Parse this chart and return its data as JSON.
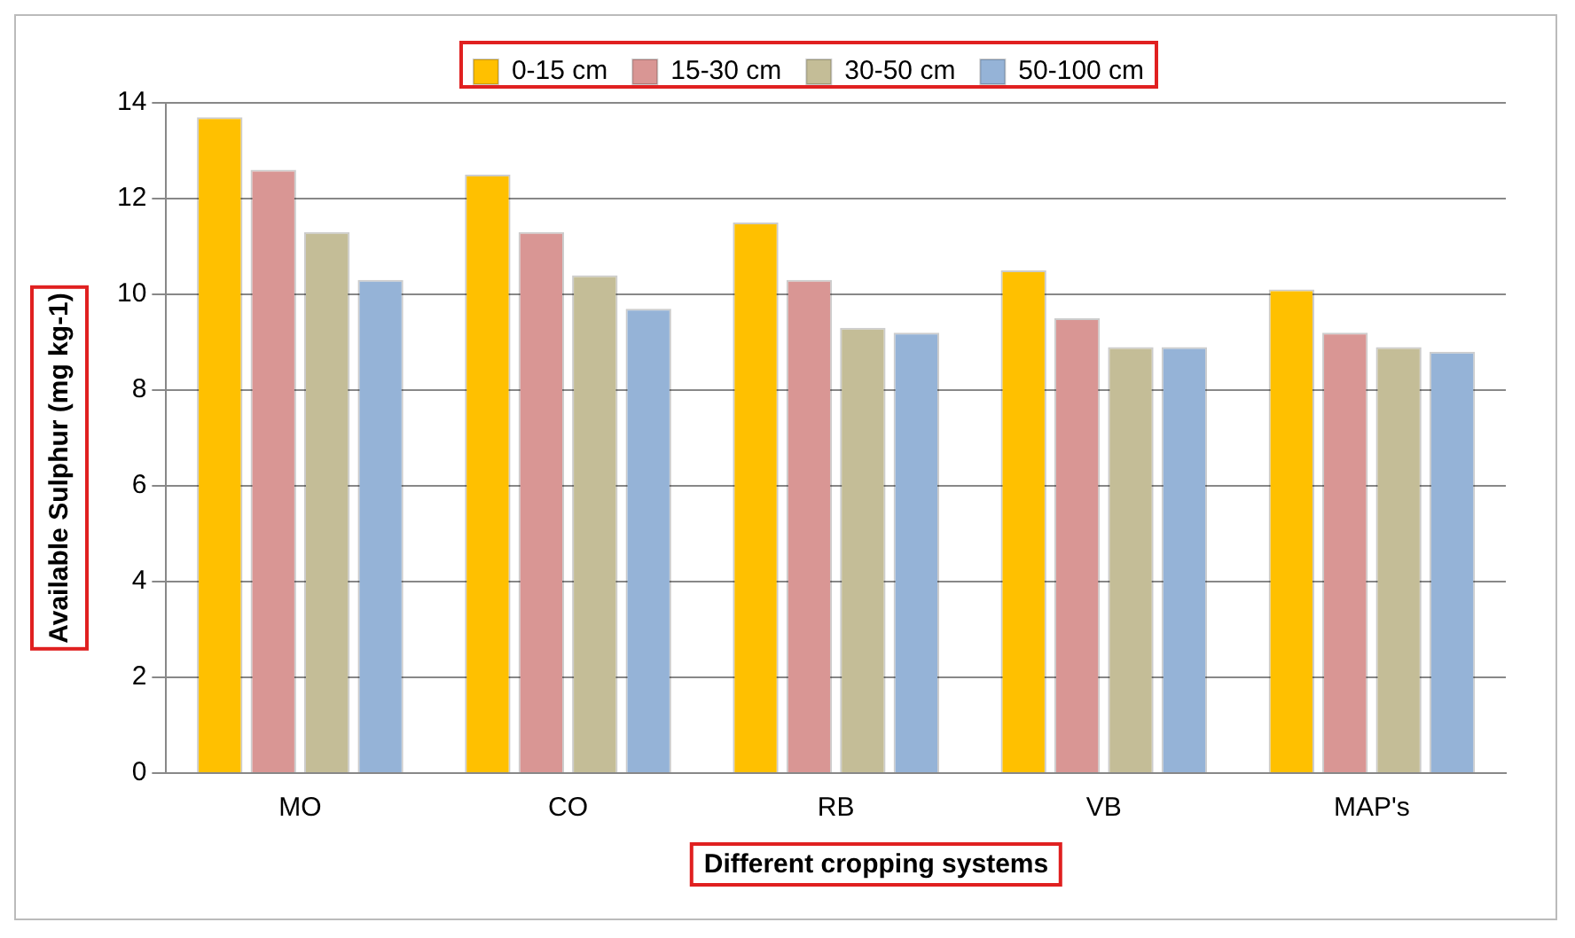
{
  "chart_data": {
    "type": "bar",
    "xlabel": "Different cropping systems",
    "ylabel": "Available Sulphur (mg kg-1)",
    "categories": [
      "MO",
      "CO",
      "RB",
      "VB",
      "MAP's"
    ],
    "series": [
      {
        "name": "0-15 cm",
        "color": "#ffc000",
        "values": [
          13.7,
          12.5,
          11.5,
          10.5,
          10.1
        ]
      },
      {
        "name": "15-30 cm",
        "color": "#d99694",
        "values": [
          12.6,
          11.3,
          10.3,
          9.5,
          9.2
        ]
      },
      {
        "name": "30-50 cm",
        "color": "#c4bd97",
        "values": [
          11.3,
          10.4,
          9.3,
          8.9,
          8.9
        ]
      },
      {
        "name": "50-100 cm",
        "color": "#95b3d7",
        "values": [
          10.3,
          9.7,
          9.2,
          8.9,
          8.8
        ]
      }
    ],
    "ylim": [
      0,
      14
    ],
    "yticks": [
      0,
      2,
      4,
      6,
      8,
      10,
      12,
      14
    ],
    "grid": "y",
    "legend": "top"
  }
}
